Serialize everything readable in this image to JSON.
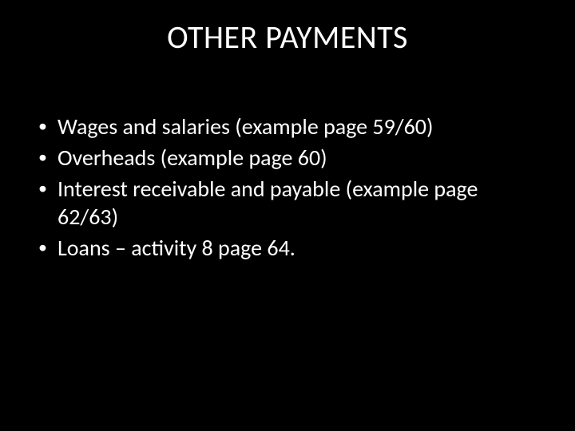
{
  "slide": {
    "background_color": "#000000",
    "text_color": "#ffffff",
    "title": {
      "text": "OTHER PAYMENTS",
      "font_size_pt": 40,
      "font_weight": 400,
      "align": "center"
    },
    "bullets": {
      "font_size_pt": 28,
      "marker": "•",
      "items": [
        "Wages and salaries (example page 59/60)",
        "Overheads (example page 60)",
        "Interest receivable and payable (example page 62/63)",
        "Loans – activity 8 page 64."
      ]
    }
  }
}
